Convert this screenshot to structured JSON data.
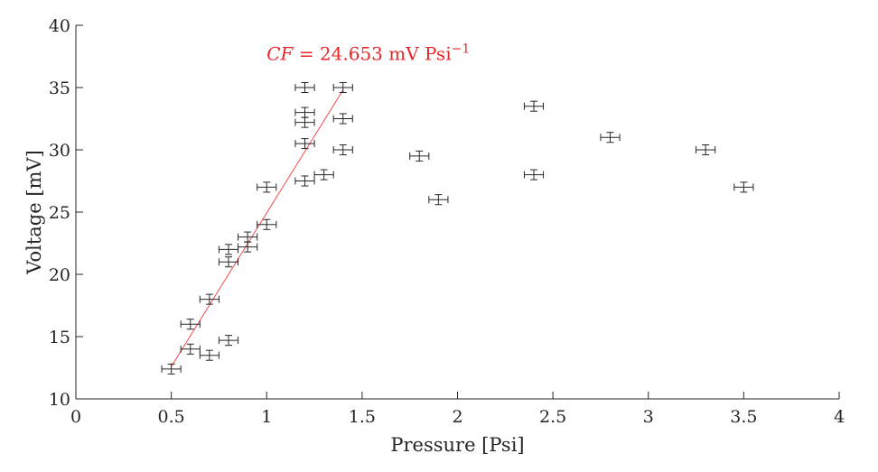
{
  "chart_data": {
    "type": "scatter",
    "title": "",
    "xlabel": "Pressure [Psi]",
    "ylabel": "Voltage [mV]",
    "xlim": [
      0,
      4
    ],
    "ylim": [
      10,
      40
    ],
    "x_ticks": [
      0,
      0.5,
      1,
      1.5,
      2,
      2.5,
      3,
      3.5,
      4
    ],
    "y_ticks": [
      10,
      15,
      20,
      25,
      30,
      35,
      40
    ],
    "x_tick_labels": [
      "0",
      "0.5",
      "1",
      "1.5",
      "2",
      "2.5",
      "3",
      "3.5",
      "4"
    ],
    "y_tick_labels": [
      "10",
      "15",
      "20",
      "25",
      "30",
      "35",
      "40"
    ],
    "grid": false,
    "legend": "none",
    "error_bars": {
      "x": 0.05,
      "y": 0.4
    },
    "series": [
      {
        "marker": "errorbar-cross",
        "color": "#262626",
        "points": [
          {
            "x": 0.5,
            "y": 12.4
          },
          {
            "x": 0.6,
            "y": 14.0
          },
          {
            "x": 0.6,
            "y": 16.0
          },
          {
            "x": 0.7,
            "y": 13.5
          },
          {
            "x": 0.7,
            "y": 18.0
          },
          {
            "x": 0.8,
            "y": 14.7
          },
          {
            "x": 0.8,
            "y": 21.0
          },
          {
            "x": 0.8,
            "y": 22.0
          },
          {
            "x": 0.9,
            "y": 22.2
          },
          {
            "x": 0.9,
            "y": 23.0
          },
          {
            "x": 1.0,
            "y": 24.0
          },
          {
            "x": 1.0,
            "y": 27.0
          },
          {
            "x": 1.2,
            "y": 27.5
          },
          {
            "x": 1.2,
            "y": 30.5
          },
          {
            "x": 1.2,
            "y": 32.2
          },
          {
            "x": 1.2,
            "y": 33.0
          },
          {
            "x": 1.2,
            "y": 35.0
          },
          {
            "x": 1.3,
            "y": 28.0
          },
          {
            "x": 1.4,
            "y": 30.0
          },
          {
            "x": 1.4,
            "y": 32.5
          },
          {
            "x": 1.4,
            "y": 35.0
          },
          {
            "x": 1.8,
            "y": 29.5
          },
          {
            "x": 1.9,
            "y": 26.0
          },
          {
            "x": 2.4,
            "y": 28.0
          },
          {
            "x": 2.4,
            "y": 33.5
          },
          {
            "x": 2.8,
            "y": 31.0
          },
          {
            "x": 3.3,
            "y": 30.0
          },
          {
            "x": 3.5,
            "y": 27.0
          }
        ]
      }
    ],
    "fit_line": {
      "color": "#ef4b4b",
      "x": [
        0.5,
        1.4
      ],
      "y": [
        12.6,
        34.8
      ]
    },
    "annotations": [
      {
        "text_parts": [
          "CF",
          " = 24.653 mV Psi",
          "−1"
        ],
        "color": "#e8262a",
        "x": 1.0,
        "y": 37.2
      }
    ]
  }
}
